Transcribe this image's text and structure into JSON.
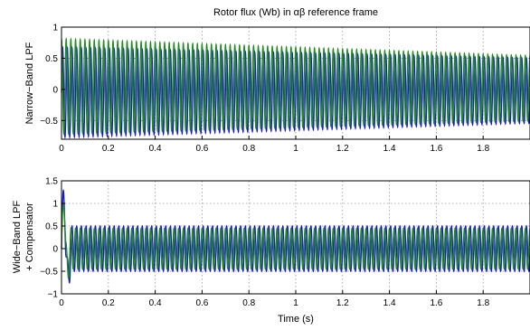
{
  "chart_data": [
    {
      "type": "line",
      "title": "Rotor flux (Wb) in αβ reference frame",
      "ylabel": "Narrow−Band LPF",
      "xlabel": "",
      "xlim": [
        0,
        2.0
      ],
      "ylim": [
        -0.8,
        1.0
      ],
      "xticks": [
        0,
        0.2,
        0.4,
        0.6,
        0.8,
        1,
        1.2,
        1.4,
        1.6,
        1.8
      ],
      "xtick_labels": [
        "0",
        "0.2",
        "0.4",
        "0.6",
        "0.8",
        "1",
        "1.2",
        "1.4",
        "1.6",
        "1.8"
      ],
      "yticks": [
        -0.5,
        0,
        0.5,
        1
      ],
      "ytick_labels": [
        "−0.5",
        "0",
        "0.5",
        "1"
      ],
      "grid": true,
      "signal": {
        "cycles_per_unit": 50,
        "t_max": 2.0
      },
      "series": [
        {
          "color": "#1a1acd",
          "form": "sin",
          "offset_start": -0.05,
          "offset_end": -0.02,
          "amplitude_start": 0.72,
          "amplitude_end": 0.52
        },
        {
          "color": "#1f8a1f",
          "form": "cos",
          "offset_start": 0.05,
          "offset_end": 0.02,
          "amplitude_start": 0.76,
          "amplitude_end": 0.52
        }
      ]
    },
    {
      "type": "line",
      "title": "",
      "ylabel": "Wide−Band LPF + Compensator",
      "ylabel_lines": [
        "Wide−Band LPF",
        "+ Compensator"
      ],
      "xlabel": "Time (s)",
      "xlim": [
        0,
        2.0
      ],
      "ylim": [
        -1.0,
        1.5
      ],
      "xticks": [
        0,
        0.2,
        0.4,
        0.6,
        0.8,
        1,
        1.2,
        1.4,
        1.6,
        1.8
      ],
      "xtick_labels": [
        "0",
        "0.2",
        "0.4",
        "0.6",
        "0.8",
        "1",
        "1.2",
        "1.4",
        "1.6",
        "1.8"
      ],
      "yticks": [
        -1,
        -0.5,
        0,
        0.5,
        1,
        1.5
      ],
      "ytick_labels": [
        "−1",
        "−0.5",
        "0",
        "0.5",
        "1",
        "1.5"
      ],
      "grid": true,
      "signal": {
        "cycles_per_unit": 50,
        "t_max": 2.0
      },
      "series": [
        {
          "color": "#1a1acd",
          "form": "sin",
          "offset_start": 0.0,
          "offset_end": 0.0,
          "amplitude_start": 0.5,
          "amplitude_end": 0.5,
          "transient": {
            "t_end": 0.04,
            "peak": 1.42,
            "min": -0.95
          }
        },
        {
          "color": "#1f8a1f",
          "form": "cos",
          "offset_start": 0.0,
          "offset_end": 0.0,
          "amplitude_start": 0.45,
          "amplitude_end": 0.45,
          "transient": {
            "t_end": 0.04,
            "peak": 1.2,
            "min": -0.6
          }
        }
      ]
    }
  ]
}
